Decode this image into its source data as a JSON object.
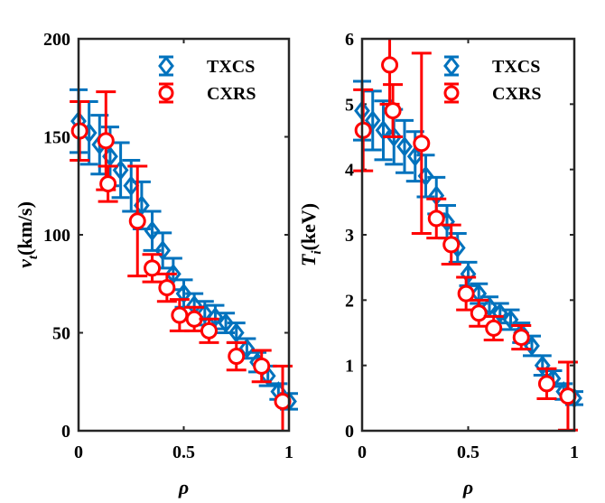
{
  "chart_data": [
    {
      "type": "scatter",
      "xlabel": "ρ",
      "ylabel_main": "v",
      "ylabel_sub": "t",
      "ylabel_unit": "(km/s)",
      "xlim": [
        0,
        1
      ],
      "ylim": [
        0,
        200
      ],
      "xticks": [
        "0",
        "0.5",
        "1"
      ],
      "yticks": [
        "0",
        "50",
        "100",
        "150",
        "200"
      ],
      "legend_position": "top-right",
      "grid": false,
      "series": [
        {
          "name": "TXCS",
          "marker": "diamond",
          "color": "#0072BD",
          "x": [
            0,
            0.05,
            0.1,
            0.15,
            0.2,
            0.25,
            0.3,
            0.35,
            0.4,
            0.45,
            0.5,
            0.55,
            0.6,
            0.65,
            0.7,
            0.75,
            0.8,
            0.85,
            0.9,
            0.95,
            1.0
          ],
          "y": [
            158,
            152,
            146,
            140,
            133,
            125,
            115,
            102,
            92,
            80,
            70,
            64,
            60,
            58,
            55,
            50,
            42,
            35,
            28,
            20,
            15
          ],
          "err": [
            16,
            16,
            15,
            15,
            14,
            13,
            12,
            10,
            9,
            8,
            7,
            6,
            6,
            6,
            5,
            5,
            5,
            5,
            5,
            4,
            4
          ]
        },
        {
          "name": "CXRS",
          "marker": "circle",
          "color": "#FF0000",
          "x": [
            0.005,
            0.13,
            0.14,
            0.28,
            0.35,
            0.42,
            0.48,
            0.55,
            0.62,
            0.75,
            0.87,
            0.97
          ],
          "y": [
            153,
            148,
            126,
            107,
            83,
            73,
            59,
            57,
            51,
            38,
            33,
            15
          ],
          "err": [
            15,
            25,
            9,
            28,
            7,
            7,
            8,
            6,
            6,
            7,
            8,
            18
          ]
        }
      ]
    },
    {
      "type": "scatter",
      "xlabel": "ρ",
      "ylabel_main": "T",
      "ylabel_sub": "i",
      "ylabel_unit": "(keV)",
      "xlim": [
        0,
        1
      ],
      "ylim": [
        0,
        6
      ],
      "xticks": [
        "0",
        "0.5",
        "1"
      ],
      "yticks": [
        "0",
        "1",
        "2",
        "3",
        "4",
        "5",
        "6"
      ],
      "legend_position": "top-right",
      "grid": false,
      "series": [
        {
          "name": "TXCS",
          "marker": "diamond",
          "color": "#0072BD",
          "x": [
            0,
            0.05,
            0.1,
            0.15,
            0.2,
            0.25,
            0.3,
            0.35,
            0.4,
            0.45,
            0.5,
            0.55,
            0.6,
            0.65,
            0.7,
            0.75,
            0.8,
            0.85,
            0.9,
            0.95,
            1.0
          ],
          "y": [
            4.9,
            4.75,
            4.6,
            4.5,
            4.35,
            4.2,
            3.9,
            3.6,
            3.2,
            2.8,
            2.4,
            2.1,
            1.9,
            1.8,
            1.7,
            1.5,
            1.3,
            1.0,
            0.8,
            0.6,
            0.5
          ],
          "err": [
            0.45,
            0.45,
            0.45,
            0.42,
            0.4,
            0.38,
            0.32,
            0.28,
            0.25,
            0.22,
            0.18,
            0.15,
            0.15,
            0.15,
            0.15,
            0.15,
            0.15,
            0.15,
            0.12,
            0.12,
            0.1
          ]
        },
        {
          "name": "CXRS",
          "marker": "circle",
          "color": "#FF0000",
          "x": [
            0.005,
            0.13,
            0.145,
            0.28,
            0.35,
            0.42,
            0.49,
            0.55,
            0.62,
            0.75,
            0.87,
            0.97
          ],
          "y": [
            4.6,
            5.6,
            4.9,
            4.4,
            3.25,
            2.85,
            2.1,
            1.8,
            1.57,
            1.43,
            0.72,
            0.53
          ],
          "err": [
            0.62,
            0.6,
            0.4,
            1.38,
            0.3,
            0.3,
            0.25,
            0.2,
            0.18,
            0.18,
            0.23,
            0.52
          ]
        }
      ]
    }
  ]
}
